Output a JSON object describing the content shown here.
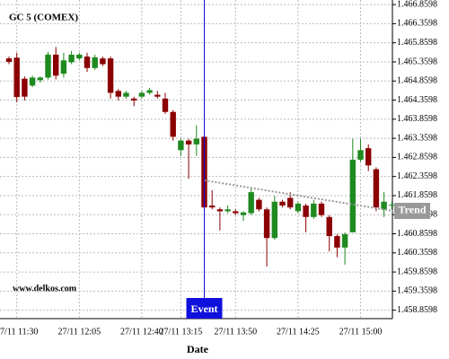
{
  "chart_data": {
    "type": "candlestick",
    "title": "GC 5 (COMEX)",
    "watermark": "www.delkos.com",
    "x_label": "Date",
    "categories": [
      null,
      "27/11 11:30",
      null,
      null,
      null,
      null,
      null,
      null,
      null,
      "27/11 12:05",
      null,
      null,
      null,
      null,
      null,
      null,
      null,
      "27/11 12:40",
      null,
      null,
      null,
      null,
      "27/11 13:15",
      null,
      null,
      null,
      null,
      null,
      null,
      "27/11 13:50",
      null,
      null,
      null,
      null,
      null,
      null,
      null,
      "27/11 14:25",
      null,
      null,
      null,
      null,
      null,
      null,
      null,
      "27/11 15:00",
      null,
      null,
      null,
      null
    ],
    "open": [
      1465.45,
      1465.47,
      1464.92,
      1464.74,
      1464.88,
      1464.95,
      1465.55,
      1465.05,
      1465.35,
      1465.45,
      1465.5,
      1465.2,
      1465.45,
      1465.45,
      1464.6,
      1464.45,
      1464.4,
      1464.45,
      1464.55,
      1464.5,
      1464.4,
      1464.05,
      1463.05,
      1463.3,
      1463.2,
      1463.4,
      1461.6,
      1461.5,
      1461.45,
      1461.45,
      1461.35,
      1461.4,
      1461.75,
      1461.5,
      1460.75,
      1461.7,
      1461.8,
      1461.45,
      1461.6,
      1461.3,
      1461.65,
      1461.3,
      1460.8,
      1460.5,
      1460.9,
      1462.8,
      1463.1,
      1462.55,
      1461.5,
      1461.6
    ],
    "high": [
      1465.5,
      1465.6,
      1464.98,
      1465.0,
      1464.98,
      1465.62,
      1465.75,
      1465.6,
      1465.65,
      1465.6,
      1465.6,
      1465.55,
      1465.5,
      1465.5,
      1464.65,
      1464.6,
      1464.45,
      1464.6,
      1464.68,
      1464.6,
      1464.55,
      1464.1,
      1463.35,
      1463.35,
      1463.7,
      1463.45,
      1462.0,
      1461.55,
      1461.6,
      1461.5,
      1461.45,
      1462.05,
      1461.8,
      1461.55,
      1461.85,
      1461.75,
      1461.95,
      1461.7,
      1461.65,
      1461.75,
      1461.7,
      1461.35,
      1460.85,
      1460.9,
      1463.35,
      1463.35,
      1463.2,
      1462.6,
      1461.95,
      1461.7
    ],
    "low": [
      1465.3,
      1464.3,
      1464.35,
      1464.7,
      1464.82,
      1464.9,
      1464.9,
      1464.95,
      1465.3,
      1465.4,
      1465.1,
      1465.15,
      1465.25,
      1464.4,
      1464.35,
      1464.4,
      1464.2,
      1464.4,
      1464.5,
      1464.4,
      1464.0,
      1463.3,
      1462.9,
      1462.3,
      1462.9,
      1461.3,
      1461.5,
      1460.95,
      1461.4,
      1461.35,
      1461.2,
      1461.35,
      1461.45,
      1460.0,
      1460.7,
      1461.55,
      1461.5,
      1461.4,
      1460.9,
      1461.25,
      1461.3,
      1460.4,
      1460.25,
      1460.05,
      1460.9,
      1462.75,
      1462.5,
      1461.45,
      1461.3,
      1461.5
    ],
    "close": [
      1465.36,
      1464.44,
      1464.45,
      1464.95,
      1464.95,
      1465.55,
      1465.0,
      1465.4,
      1465.55,
      1465.55,
      1465.2,
      1465.48,
      1465.3,
      1464.55,
      1464.45,
      1464.55,
      1464.35,
      1464.55,
      1464.62,
      1464.45,
      1464.05,
      1463.4,
      1463.3,
      1463.2,
      1463.35,
      1461.55,
      1461.55,
      1461.45,
      1461.5,
      1461.4,
      1461.42,
      1461.95,
      1461.5,
      1460.75,
      1461.7,
      1461.6,
      1461.55,
      1461.65,
      1461.3,
      1461.65,
      1461.35,
      1460.8,
      1460.5,
      1460.85,
      1462.8,
      1463.05,
      1462.65,
      1461.55,
      1461.7,
      1461.62
    ],
    "up_color": "#1f8a1f",
    "down_color": "#8b0000",
    "trend": {
      "label": "Trend",
      "x": [
        25,
        49.1
      ],
      "values": [
        1462.26,
        1461.46
      ],
      "color": "#999999"
    },
    "event": {
      "label": "Event",
      "index": 25,
      "color": "#1010dd"
    },
    "ylim": [
      1458.64,
      1466.98
    ],
    "yticks": [
      {
        "value": 1458.8598,
        "label": "1.458.8598"
      },
      {
        "value": 1459.3598,
        "label": "1.459.3598"
      },
      {
        "value": 1459.8598,
        "label": "1.459.8598"
      },
      {
        "value": 1460.3598,
        "label": "1.460.3598"
      },
      {
        "value": 1460.8598,
        "label": "1.460.8598"
      },
      {
        "value": 1461.3598,
        "label": "1.461.3598"
      },
      {
        "value": 1461.8598,
        "label": "1.461.8598"
      },
      {
        "value": 1462.3598,
        "label": "1.462.3598"
      },
      {
        "value": 1462.8598,
        "label": "1.462.8598"
      },
      {
        "value": 1463.3598,
        "label": "1.463.3598"
      },
      {
        "value": 1463.8598,
        "label": "1.463.8598"
      },
      {
        "value": 1464.3598,
        "label": "1.464.3598"
      },
      {
        "value": 1464.8598,
        "label": "1.464.8598"
      },
      {
        "value": 1465.3598,
        "label": "1.465.3598"
      },
      {
        "value": 1465.8598,
        "label": "1.465.8598"
      },
      {
        "value": 1466.3598,
        "label": "1.466.3598"
      },
      {
        "value": 1466.8598,
        "label": "1.466.8598"
      }
    ],
    "grid": true
  }
}
